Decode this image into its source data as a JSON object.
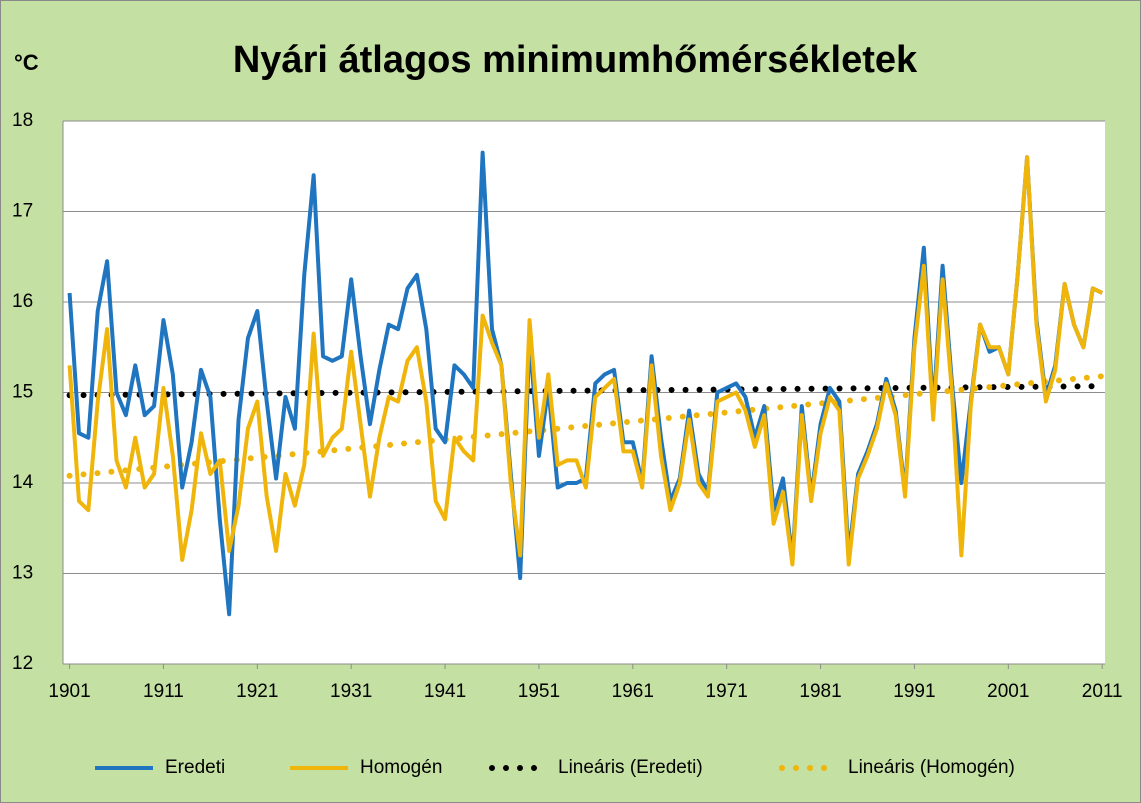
{
  "chart_data": {
    "type": "line",
    "title": "Nyári átlagos minimumhőmérsékletek",
    "y_label": "°C",
    "x": [
      1901,
      1902,
      1903,
      1904,
      1905,
      1906,
      1907,
      1908,
      1909,
      1910,
      1911,
      1912,
      1913,
      1914,
      1915,
      1916,
      1917,
      1918,
      1919,
      1920,
      1921,
      1922,
      1923,
      1924,
      1925,
      1926,
      1927,
      1928,
      1929,
      1930,
      1931,
      1932,
      1933,
      1934,
      1935,
      1936,
      1937,
      1938,
      1939,
      1940,
      1941,
      1942,
      1943,
      1944,
      1945,
      1946,
      1947,
      1948,
      1949,
      1950,
      1951,
      1952,
      1953,
      1954,
      1955,
      1956,
      1957,
      1958,
      1959,
      1960,
      1961,
      1962,
      1963,
      1964,
      1965,
      1966,
      1967,
      1968,
      1969,
      1970,
      1971,
      1972,
      1973,
      1974,
      1975,
      1976,
      1977,
      1978,
      1979,
      1980,
      1981,
      1982,
      1983,
      1984,
      1985,
      1986,
      1987,
      1988,
      1989,
      1990,
      1991,
      1992,
      1993,
      1994,
      1995,
      1996,
      1997,
      1998,
      1999,
      2000,
      2001,
      2002,
      2003,
      2004,
      2005,
      2006,
      2007,
      2008,
      2009,
      2010,
      2011
    ],
    "series": [
      {
        "name": "Eredeti",
        "color": "#1f75bf",
        "style": "solid",
        "values": [
          16.1,
          14.55,
          14.5,
          15.9,
          16.45,
          15.0,
          14.75,
          15.3,
          14.75,
          14.85,
          15.8,
          15.2,
          13.95,
          14.45,
          15.25,
          14.95,
          13.6,
          12.55,
          14.7,
          15.6,
          15.9,
          14.9,
          14.05,
          14.95,
          14.6,
          16.3,
          17.4,
          15.4,
          15.35,
          15.4,
          16.25,
          15.4,
          14.65,
          15.25,
          15.75,
          15.7,
          16.15,
          16.3,
          15.7,
          14.6,
          14.45,
          15.3,
          15.2,
          15.05,
          17.65,
          15.7,
          15.3,
          14.1,
          12.95,
          15.6,
          14.3,
          15.05,
          13.95,
          14.0,
          14.0,
          14.05,
          15.1,
          15.2,
          15.25,
          14.45,
          14.45,
          14.0,
          15.4,
          14.5,
          13.8,
          14.05,
          14.8,
          14.1,
          13.9,
          15.0,
          15.05,
          15.1,
          14.95,
          14.5,
          14.85,
          13.7,
          14.05,
          13.15,
          14.85,
          13.85,
          14.65,
          15.05,
          14.9,
          13.2,
          14.1,
          14.35,
          14.65,
          15.15,
          14.8,
          13.9,
          15.6,
          16.6,
          14.8,
          16.4,
          15.1,
          14.0,
          14.9,
          15.75,
          15.45,
          15.5,
          15.2,
          16.3,
          17.6,
          15.8,
          14.95,
          15.3,
          16.2,
          15.75,
          15.5,
          16.15,
          16.1
        ]
      },
      {
        "name": "Homogén",
        "color": "#f0b50a",
        "style": "solid",
        "values": [
          15.3,
          13.8,
          13.7,
          14.9,
          15.7,
          14.25,
          13.95,
          14.5,
          13.95,
          14.1,
          15.05,
          14.3,
          13.15,
          13.7,
          14.55,
          14.1,
          14.25,
          13.25,
          13.75,
          14.6,
          14.9,
          13.85,
          13.25,
          14.1,
          13.75,
          14.2,
          15.65,
          14.3,
          14.5,
          14.6,
          15.45,
          14.65,
          13.85,
          14.5,
          14.95,
          14.9,
          15.35,
          15.5,
          14.9,
          13.8,
          13.6,
          14.5,
          14.35,
          14.25,
          15.85,
          15.55,
          15.3,
          14.0,
          13.2,
          15.8,
          14.5,
          15.2,
          14.2,
          14.25,
          14.25,
          13.95,
          14.95,
          15.05,
          15.15,
          14.35,
          14.35,
          13.95,
          15.3,
          14.3,
          13.7,
          14.0,
          14.7,
          14.0,
          13.85,
          14.9,
          14.95,
          15.0,
          14.8,
          14.4,
          14.75,
          13.55,
          13.9,
          13.1,
          14.75,
          13.8,
          14.55,
          14.95,
          14.8,
          13.1,
          14.05,
          14.3,
          14.6,
          15.1,
          14.75,
          13.85,
          15.5,
          16.4,
          14.7,
          16.25,
          15.0,
          13.2,
          14.85,
          15.75,
          15.5,
          15.5,
          15.2,
          16.3,
          17.6,
          15.75,
          14.9,
          15.25,
          16.2,
          15.75,
          15.5,
          16.15,
          16.1
        ]
      },
      {
        "name": "Lineáris (Eredeti)",
        "color": "#000000",
        "style": "dotted",
        "x": [
          1901,
          2011
        ],
        "values": [
          14.97,
          15.07
        ]
      },
      {
        "name": "Lineáris (Homogén)",
        "color": "#f0b50a",
        "style": "dotted",
        "x": [
          1901,
          2011
        ],
        "values": [
          14.08,
          15.18
        ]
      }
    ],
    "xlim": [
      1900.3,
      2011.3
    ],
    "xticks": [
      1901,
      1911,
      1921,
      1931,
      1941,
      1951,
      1961,
      1971,
      1981,
      1991,
      2001,
      2011
    ],
    "ylim": [
      12,
      18
    ],
    "yticks": [
      12,
      13,
      14,
      15,
      16,
      17,
      18
    ],
    "grid": true,
    "legend": "bottom"
  }
}
